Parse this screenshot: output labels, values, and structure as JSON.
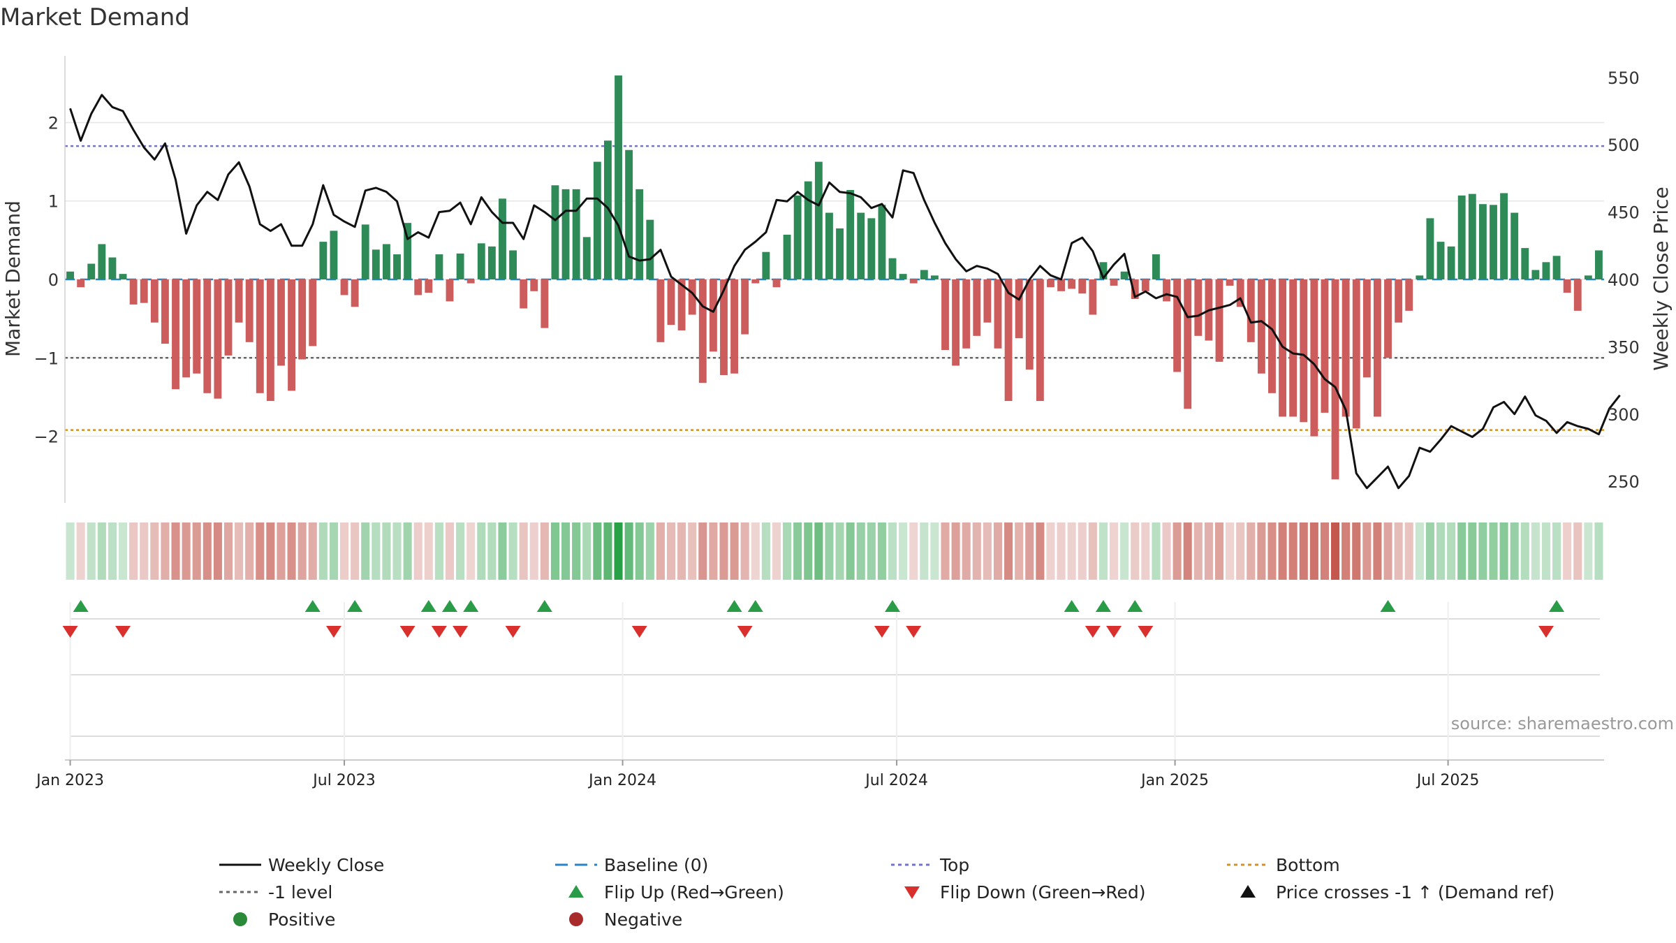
{
  "chart_data": {
    "type": "bar",
    "title": "Market Demand",
    "ylabel": "Market Demand",
    "y2label": "Weekly Close Price",
    "ylim": [
      -2.85,
      2.85
    ],
    "y2lim": [
      234,
      566
    ],
    "yticks": [
      "2",
      "1",
      "0",
      "−1",
      "−2"
    ],
    "yticks_values": [
      2,
      1,
      0,
      -1,
      -2
    ],
    "y2ticks": [
      "550",
      "500",
      "450",
      "400",
      "350",
      "300",
      "250"
    ],
    "y2ticks_values": [
      550,
      500,
      450,
      400,
      350,
      300,
      250
    ],
    "xticks": [
      {
        "label": "Jan 2023",
        "week": 1
      },
      {
        "label": "Jul 2023",
        "week": 27
      },
      {
        "label": "Jan 2024",
        "week": 53.4
      },
      {
        "label": "Jul 2024",
        "week": 79.4
      },
      {
        "label": "Jan 2025",
        "week": 105.8
      },
      {
        "label": "Jul 2025",
        "week": 131.7
      }
    ],
    "reference_lines": {
      "top": 1.7,
      "minus_one": -1,
      "bottom": -1.92,
      "baseline": 0
    },
    "demand": [
      0.1,
      -0.1,
      0.2,
      0.45,
      0.28,
      0.07,
      -0.32,
      -0.3,
      -0.55,
      -0.82,
      -1.4,
      -1.25,
      -1.2,
      -1.45,
      -1.52,
      -0.97,
      -0.55,
      -0.8,
      -1.45,
      -1.55,
      -1.1,
      -1.42,
      -1.02,
      -0.85,
      0.48,
      0.62,
      -0.2,
      -0.35,
      0.7,
      0.38,
      0.45,
      0.32,
      0.72,
      -0.2,
      -0.17,
      0.32,
      -0.28,
      0.33,
      -0.05,
      0.46,
      0.42,
      1.03,
      0.37,
      -0.37,
      -0.15,
      -0.62,
      1.2,
      1.15,
      1.15,
      0.54,
      1.5,
      1.77,
      2.6,
      1.65,
      1.15,
      0.76,
      -0.8,
      -0.58,
      -0.65,
      -0.45,
      -1.32,
      -0.92,
      -1.22,
      -1.2,
      -0.7,
      -0.05,
      0.35,
      -0.1,
      0.57,
      1.07,
      1.25,
      1.5,
      0.85,
      0.65,
      1.14,
      0.85,
      0.78,
      0.95,
      0.27,
      0.07,
      -0.05,
      0.12,
      0.05,
      -0.9,
      -1.1,
      -0.88,
      -0.72,
      -0.55,
      -0.88,
      -1.55,
      -0.75,
      -1.15,
      -1.55,
      -0.1,
      -0.15,
      -0.12,
      -0.18,
      -0.45,
      0.22,
      -0.08,
      0.1,
      -0.25,
      -0.15,
      0.32,
      -0.28,
      -1.18,
      -1.65,
      -0.72,
      -0.78,
      -1.05,
      -0.08,
      -0.35,
      -0.8,
      -1.2,
      -1.45,
      -1.75,
      -1.75,
      -1.82,
      -2.0,
      -1.7,
      -2.55,
      -1.75,
      -1.9,
      -1.25,
      -1.75,
      -1.0,
      -0.55,
      -0.4,
      0.05,
      0.78,
      0.48,
      0.42,
      1.07,
      1.09,
      0.96,
      0.95,
      1.1,
      0.85,
      0.4,
      0.12,
      0.22,
      0.3,
      -0.17,
      -0.4,
      0.05,
      0.37
    ],
    "price": [
      527,
      503,
      523,
      537,
      528,
      525,
      511,
      498,
      489,
      501,
      474,
      434,
      455,
      465,
      459,
      478,
      487,
      469,
      441,
      436,
      441,
      425,
      425,
      441,
      470,
      448,
      443,
      439,
      466,
      468,
      465,
      458,
      430,
      435,
      431,
      450,
      451,
      457,
      441,
      461,
      450,
      442,
      442,
      430,
      455,
      450,
      444,
      451,
      451,
      460,
      460,
      453,
      440,
      417,
      414,
      415,
      422,
      402,
      396,
      390,
      380,
      376,
      392,
      410,
      422,
      428,
      435,
      459,
      458,
      465,
      459,
      455,
      472,
      465,
      464,
      461,
      453,
      456,
      446,
      481,
      479,
      459,
      442,
      427,
      415,
      406,
      410,
      408,
      404,
      390,
      385,
      400,
      410,
      403,
      400,
      427,
      431,
      421,
      401,
      411,
      419,
      387,
      391,
      386,
      389,
      387,
      372,
      373,
      377,
      379,
      381,
      386,
      368,
      369,
      363,
      350,
      345,
      344,
      337,
      326,
      320,
      303,
      256,
      245,
      253,
      261,
      245,
      254,
      275,
      272,
      281,
      291,
      287,
      283,
      289,
      305,
      309,
      300,
      313,
      299,
      295,
      286,
      294,
      291,
      289,
      285,
      304,
      314
    ],
    "flip_up_weeks": [
      2,
      24,
      28,
      35,
      37,
      39,
      46,
      64,
      66,
      79,
      96,
      99,
      102,
      126,
      142
    ],
    "flip_down_weeks": [
      1,
      6,
      26,
      33,
      36,
      38,
      43,
      55,
      65,
      78,
      81,
      98,
      100,
      103,
      141
    ],
    "watermark": "source: sharemaestro.com",
    "legend": [
      {
        "label": "Weekly Close",
        "symbol": "line",
        "color": "#111111"
      },
      {
        "label": "Baseline (0)",
        "symbol": "dashed",
        "color": "#2b83c6"
      },
      {
        "label": "Top",
        "symbol": "dotted",
        "color": "#7373c8"
      },
      {
        "label": "Bottom",
        "symbol": "dotted",
        "color": "#d8921c"
      },
      {
        "label": "-1 level",
        "symbol": "dotted",
        "color": "#666666"
      },
      {
        "label": "Flip Up (Red→Green)",
        "symbol": "triangle-up",
        "color": "#2a9c48"
      },
      {
        "label": "Flip Down (Green→Red)",
        "symbol": "triangle-down",
        "color": "#d9302d"
      },
      {
        "label": "Price crosses -1 ↑ (Demand ref)",
        "symbol": "triangle-up",
        "color": "#111111"
      },
      {
        "label": "Positive",
        "symbol": "circle",
        "color": "#2a8a3a"
      },
      {
        "label": "Negative",
        "symbol": "circle",
        "color": "#a82a2a"
      }
    ],
    "colors": {
      "positive_bar": "#2e8b57",
      "negative_bar": "#cd5c5c",
      "price_line": "#111111",
      "grid": "#e6e6e6",
      "text": "#333333"
    }
  }
}
